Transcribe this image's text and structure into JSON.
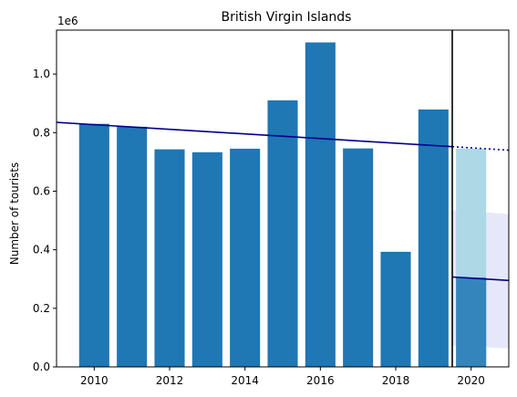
{
  "chart_data": {
    "type": "bar",
    "title": "British Virgin Islands",
    "xlabel": "",
    "ylabel": "Number of tourists",
    "offset_label": "1e6",
    "xlim": [
      2009.0,
      2021.0
    ],
    "ylim": [
      0,
      1150000
    ],
    "x_ticks": [
      2010,
      2012,
      2014,
      2016,
      2018,
      2020
    ],
    "y_ticks": [
      0,
      200000,
      400000,
      600000,
      800000,
      1000000
    ],
    "y_tick_labels": [
      "0.0",
      "0.2",
      "0.4",
      "0.6",
      "0.8",
      "1.0"
    ],
    "grid": false,
    "series": [
      {
        "values": [
          {
            "x": 2010,
            "y": 830000
          },
          {
            "x": 2011,
            "y": 820000
          },
          {
            "x": 2012,
            "y": 743000
          },
          {
            "x": 2013,
            "y": 733000
          },
          {
            "x": 2014,
            "y": 745000
          },
          {
            "x": 2015,
            "y": 910000
          },
          {
            "x": 2016,
            "y": 1108000
          },
          {
            "x": 2017,
            "y": 746000
          },
          {
            "x": 2018,
            "y": 393000
          },
          {
            "x": 2019,
            "y": 879000
          }
        ],
        "color": "#1f77b4"
      },
      {
        "values": [
          {
            "x": 2020,
            "y": 745000
          }
        ],
        "color": "#add8e6"
      },
      {
        "values": [
          {
            "x": 2020,
            "y": 305000
          }
        ],
        "color": "#1f77b4",
        "opacity": 0.85
      }
    ],
    "trend_before": {
      "x": [
        2009.0,
        2019.5
      ],
      "y": [
        835000,
        752000
      ],
      "color": "#00008b"
    },
    "trend_projection": {
      "x": [
        2019.5,
        2021.0
      ],
      "y": [
        752000,
        740000
      ],
      "color": "#00008b",
      "style": "dotted"
    },
    "trend_after": {
      "x": [
        2019.5,
        2021.0
      ],
      "y": [
        307000,
        295000
      ],
      "color": "#00008b"
    },
    "confidence_band": {
      "x": [
        2019.5,
        2021.0
      ],
      "upper": [
        535000,
        522000
      ],
      "lower": [
        73000,
        63000
      ],
      "color": "#e6e6fa"
    },
    "vertical_line": {
      "x": 2019.5,
      "color": "#000000"
    }
  }
}
